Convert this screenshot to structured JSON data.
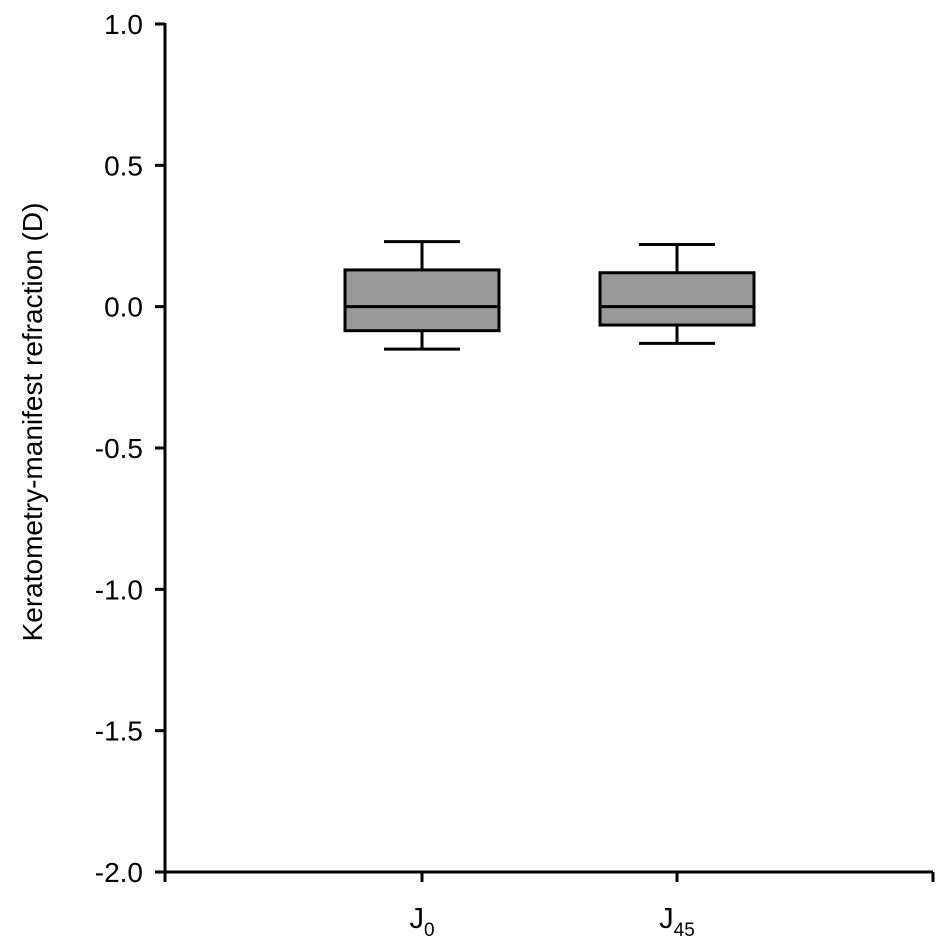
{
  "chart_data": {
    "type": "box",
    "ylabel": "Keratometry-manifest refraction (D)",
    "ylim": [
      -2.0,
      1.0
    ],
    "y_ticks": [
      1.0,
      0.5,
      0.0,
      -0.5,
      -1.0,
      -1.5,
      -2.0
    ],
    "y_tick_labels": [
      "1.0",
      "0.5",
      "0.0",
      "-0.5",
      "-1.0",
      "-1.5",
      "-2.0"
    ],
    "grid": false,
    "legend": "none",
    "box_color": "#999999",
    "categories": [
      {
        "main": "J",
        "sub": "0"
      },
      {
        "main": "J",
        "sub": "45"
      }
    ],
    "boxes": [
      {
        "whisker_low": -0.15,
        "q1": -0.085,
        "median": 0.0,
        "q3": 0.13,
        "whisker_high": 0.23
      },
      {
        "whisker_low": -0.13,
        "q1": -0.065,
        "median": 0.0,
        "q3": 0.12,
        "whisker_high": 0.22
      }
    ]
  }
}
